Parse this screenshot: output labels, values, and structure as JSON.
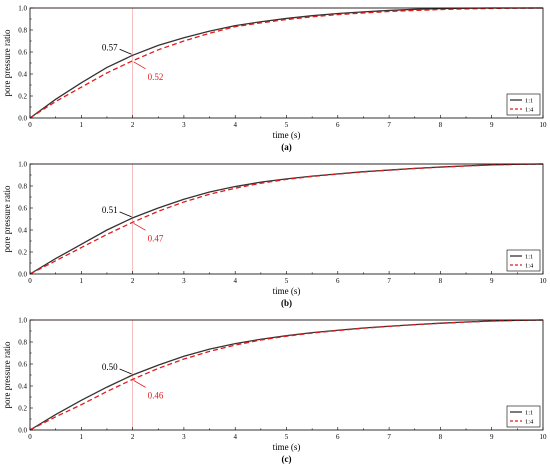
{
  "chart_data": [
    {
      "type": "line",
      "panel_label": "(a)",
      "xlabel": "time (s)",
      "ylabel": "pore pressure ratio",
      "xlim": [
        0,
        10
      ],
      "ylim": [
        0.0,
        1.0
      ],
      "xticks": [
        "0",
        "1",
        "2",
        "3",
        "4",
        "5",
        "6",
        "7",
        "8",
        "9",
        "10"
      ],
      "yticks": [
        "0.0",
        "0.2",
        "0.4",
        "0.6",
        "0.8",
        "1.0"
      ],
      "reference_lines": {
        "x": 2,
        "y": 1.0
      },
      "legend_position": "lower-right",
      "x": [
        0,
        0.5,
        1,
        1.5,
        2,
        2.5,
        3,
        3.5,
        4,
        4.5,
        5,
        5.5,
        6,
        6.5,
        7,
        7.5,
        8,
        8.5,
        9,
        9.5,
        10
      ],
      "series": [
        {
          "name": "1:1",
          "color": "#333333",
          "style": "solid",
          "values": [
            0.0,
            0.17,
            0.32,
            0.46,
            0.57,
            0.66,
            0.73,
            0.79,
            0.84,
            0.875,
            0.905,
            0.93,
            0.95,
            0.965,
            0.978,
            0.988,
            0.995,
            0.998,
            1.0,
            1.0,
            1.0
          ]
        },
        {
          "name": "1:4",
          "color": "#e31a1c",
          "style": "dashed",
          "values": [
            0.0,
            0.15,
            0.28,
            0.41,
            0.52,
            0.62,
            0.7,
            0.77,
            0.83,
            0.865,
            0.895,
            0.92,
            0.94,
            0.955,
            0.968,
            0.978,
            0.986,
            0.992,
            0.996,
            0.999,
            1.0
          ]
        }
      ],
      "annotations": [
        {
          "text": "0.57",
          "x": 2,
          "y": 0.57,
          "color": "#000000",
          "side": "upper-left"
        },
        {
          "text": "0.52",
          "x": 2,
          "y": 0.52,
          "color": "#e31a1c",
          "side": "lower-right"
        }
      ]
    },
    {
      "type": "line",
      "panel_label": "(b)",
      "xlabel": "time (s)",
      "ylabel": "pore pressure ratio",
      "xlim": [
        0,
        10
      ],
      "ylim": [
        0.0,
        1.0
      ],
      "xticks": [
        "0",
        "1",
        "2",
        "3",
        "4",
        "5",
        "6",
        "7",
        "8",
        "9",
        "10"
      ],
      "yticks": [
        "0.0",
        "0.2",
        "0.4",
        "0.6",
        "0.8",
        "1.0"
      ],
      "reference_lines": {
        "x": 2,
        "y": 1.0
      },
      "legend_position": "lower-right",
      "x": [
        0,
        0.5,
        1,
        1.5,
        2,
        2.5,
        3,
        3.5,
        4,
        4.5,
        5,
        5.5,
        6,
        6.5,
        7,
        7.5,
        8,
        8.5,
        9,
        9.5,
        10
      ],
      "series": [
        {
          "name": "1:1",
          "color": "#333333",
          "style": "solid",
          "values": [
            0.0,
            0.14,
            0.27,
            0.4,
            0.51,
            0.6,
            0.68,
            0.745,
            0.795,
            0.835,
            0.865,
            0.89,
            0.91,
            0.93,
            0.945,
            0.96,
            0.972,
            0.983,
            0.992,
            0.998,
            1.0
          ]
        },
        {
          "name": "1:4",
          "color": "#e31a1c",
          "style": "dashed",
          "values": [
            0.0,
            0.12,
            0.24,
            0.36,
            0.47,
            0.57,
            0.655,
            0.725,
            0.78,
            0.825,
            0.86,
            0.887,
            0.908,
            0.928,
            0.944,
            0.959,
            0.971,
            0.982,
            0.991,
            0.997,
            1.0
          ]
        }
      ],
      "annotations": [
        {
          "text": "0.51",
          "x": 2,
          "y": 0.51,
          "color": "#000000",
          "side": "upper-left"
        },
        {
          "text": "0.47",
          "x": 2,
          "y": 0.47,
          "color": "#e31a1c",
          "side": "lower-right"
        }
      ]
    },
    {
      "type": "line",
      "panel_label": "(c)",
      "xlabel": "time (s)",
      "ylabel": "pore pressure ratio",
      "xlim": [
        0,
        10
      ],
      "ylim": [
        0.0,
        1.0
      ],
      "xticks": [
        "0",
        "1",
        "2",
        "3",
        "4",
        "5",
        "6",
        "7",
        "8",
        "9",
        "10"
      ],
      "yticks": [
        "0.0",
        "0.2",
        "0.4",
        "0.6",
        "0.8",
        "1.0"
      ],
      "reference_lines": {
        "x": 2,
        "y": 1.0
      },
      "legend_position": "lower-right",
      "x": [
        0,
        0.5,
        1,
        1.5,
        2,
        2.5,
        3,
        3.5,
        4,
        4.5,
        5,
        5.5,
        6,
        6.5,
        7,
        7.5,
        8,
        8.5,
        9,
        9.5,
        10
      ],
      "series": [
        {
          "name": "1:1",
          "color": "#333333",
          "style": "solid",
          "values": [
            0.0,
            0.14,
            0.27,
            0.39,
            0.5,
            0.59,
            0.67,
            0.735,
            0.785,
            0.825,
            0.858,
            0.885,
            0.907,
            0.927,
            0.943,
            0.958,
            0.971,
            0.982,
            0.991,
            0.997,
            1.0
          ]
        },
        {
          "name": "1:4",
          "color": "#e31a1c",
          "style": "dashed",
          "values": [
            0.0,
            0.12,
            0.23,
            0.35,
            0.46,
            0.56,
            0.645,
            0.715,
            0.772,
            0.818,
            0.853,
            0.881,
            0.904,
            0.925,
            0.942,
            0.957,
            0.97,
            0.981,
            0.99,
            0.997,
            1.0
          ]
        }
      ],
      "annotations": [
        {
          "text": "0.50",
          "x": 2,
          "y": 0.5,
          "color": "#000000",
          "side": "upper-left"
        },
        {
          "text": "0.46",
          "x": 2,
          "y": 0.46,
          "color": "#e31a1c",
          "side": "lower-right"
        }
      ]
    }
  ]
}
